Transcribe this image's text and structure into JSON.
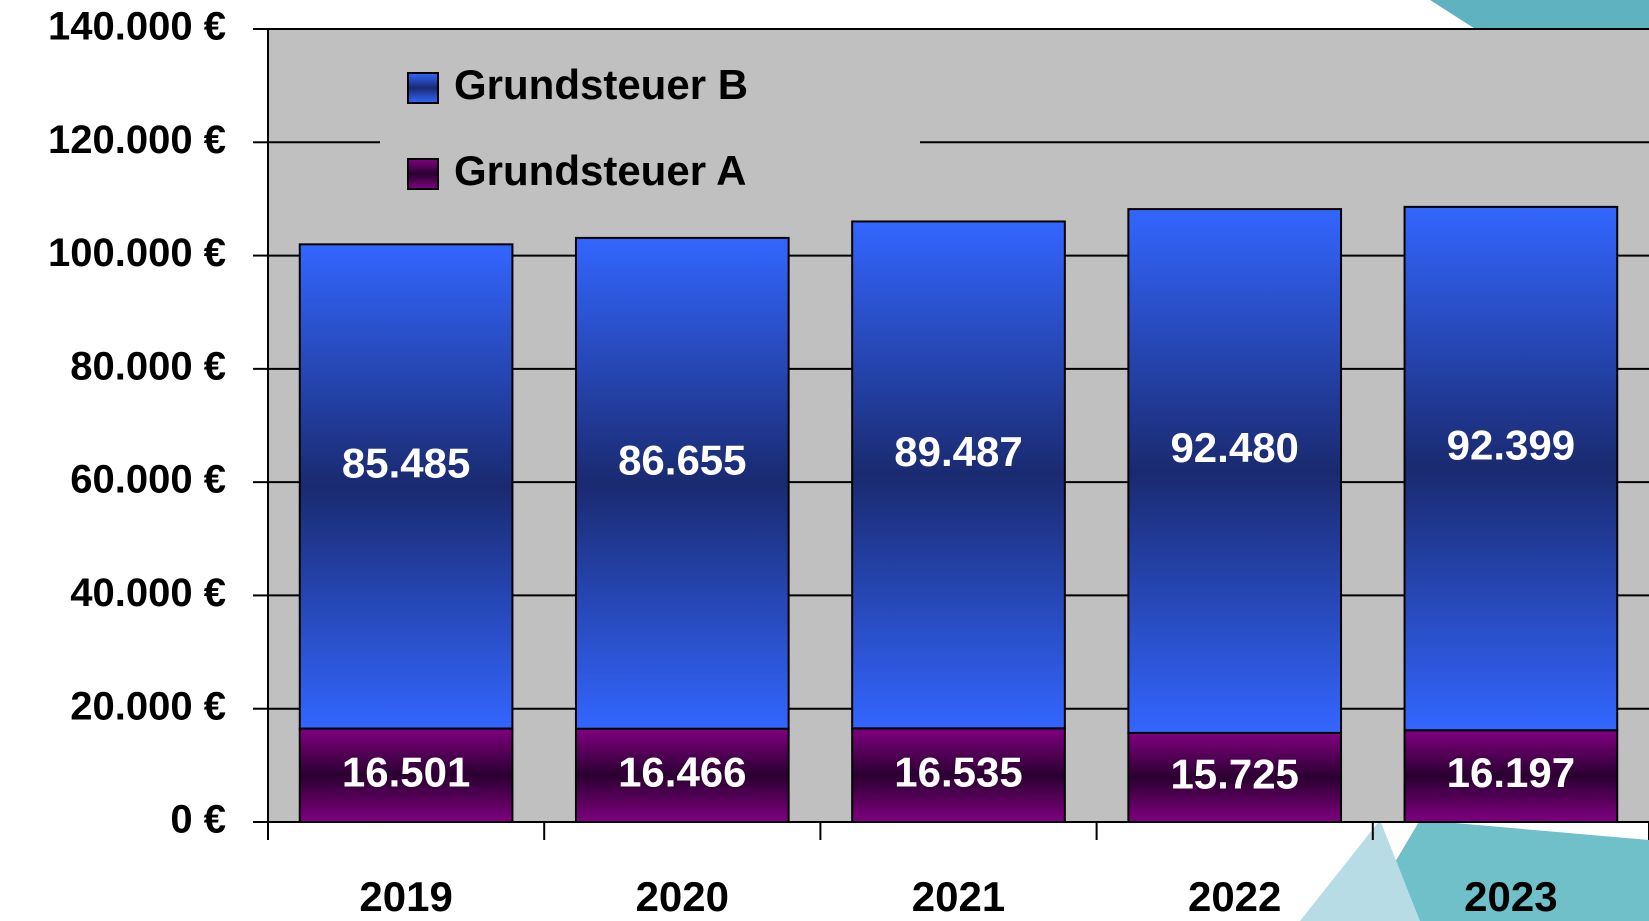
{
  "chart_data": {
    "type": "stacked_bar",
    "categories": [
      "2019",
      "2020",
      "2021",
      "2022",
      "2023"
    ],
    "series": [
      {
        "name": "Grundsteuer A",
        "color": "#800080",
        "values": [
          16501,
          16466,
          16535,
          15725,
          16197
        ],
        "value_labels": [
          "16.501",
          "16.466",
          "16.535",
          "15.725",
          "16.197"
        ]
      },
      {
        "name": "Grundsteuer B",
        "color": "#3366ff",
        "values": [
          85485,
          86655,
          89487,
          92480,
          92399
        ],
        "value_labels": [
          "85.485",
          "86.655",
          "89.487",
          "92.480",
          "92.399"
        ]
      }
    ],
    "ylim": [
      0,
      140000
    ],
    "yticks": [
      {
        "value": 0,
        "label": "0 €"
      },
      {
        "value": 20000,
        "label": "20.000 €"
      },
      {
        "value": 40000,
        "label": "40.000 €"
      },
      {
        "value": 60000,
        "label": "60.000 €"
      },
      {
        "value": 80000,
        "label": "80.000 €"
      },
      {
        "value": 100000,
        "label": "100.000 €"
      },
      {
        "value": 120000,
        "label": "120.000 €"
      },
      {
        "value": 140000,
        "label": "140.000 €"
      }
    ],
    "grid": true,
    "legend": "top-left"
  }
}
